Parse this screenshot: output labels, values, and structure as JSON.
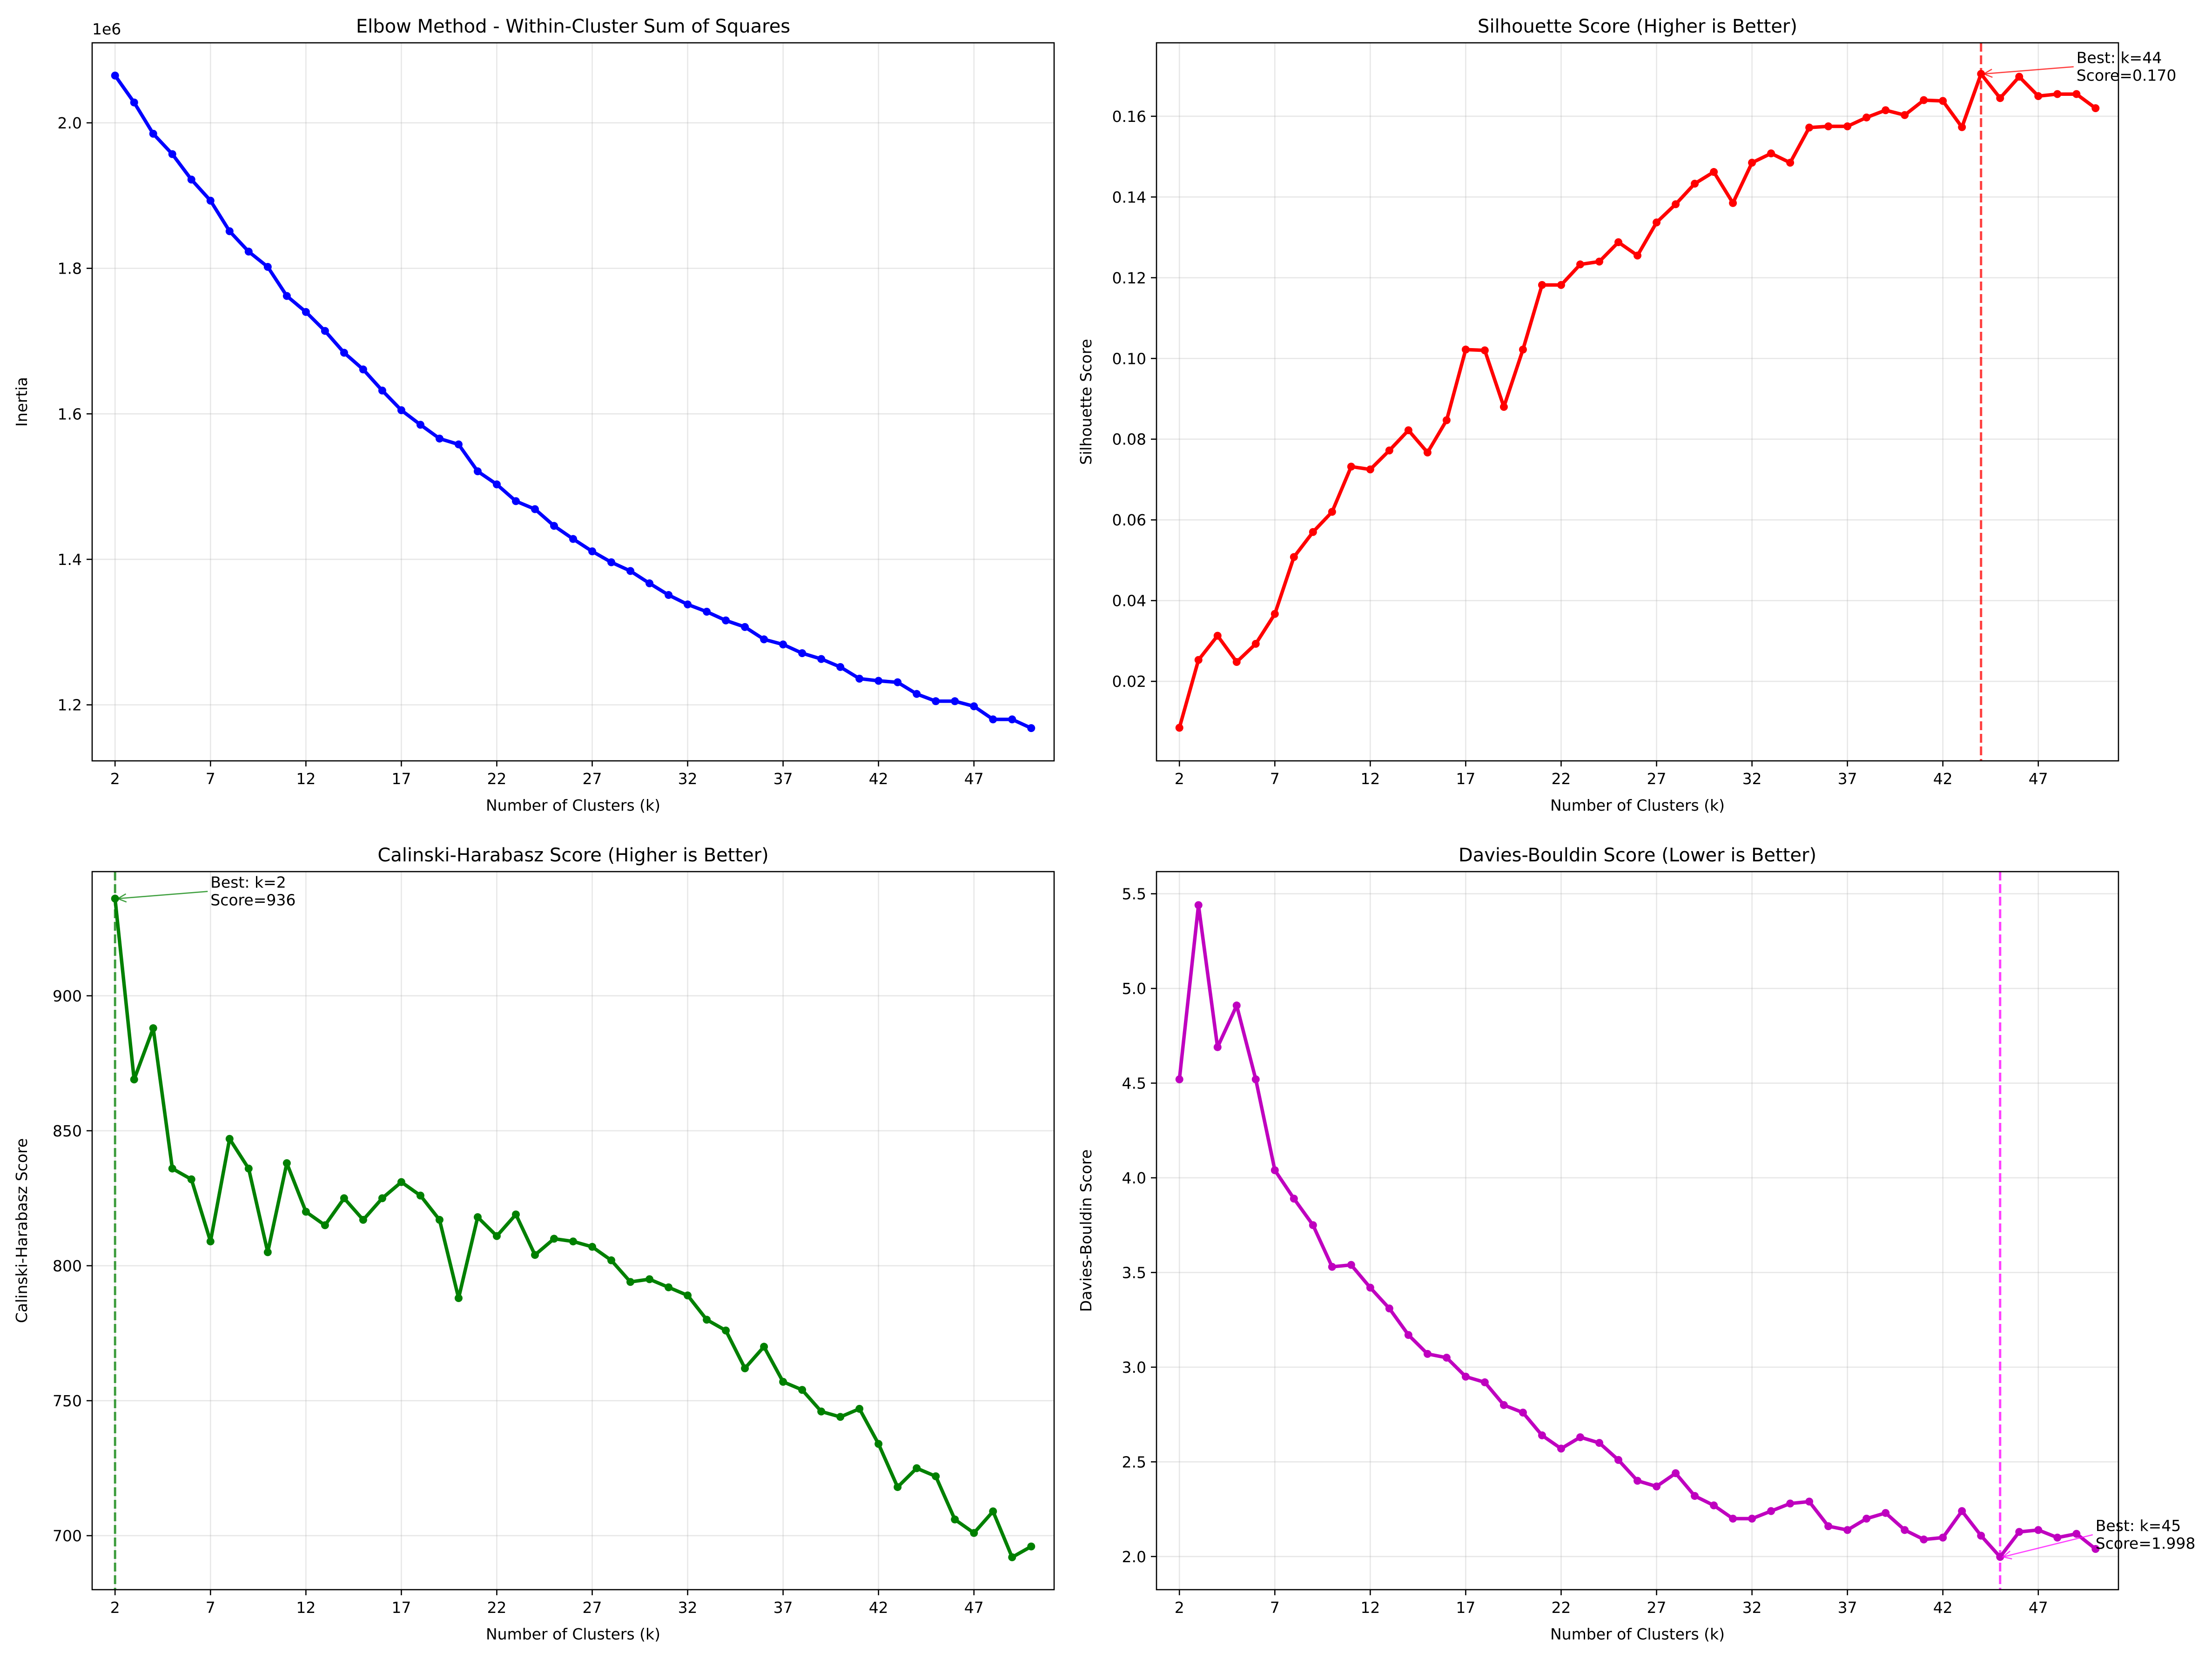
{
  "chart_data": [
    {
      "type": "line",
      "title": "Elbow Method - Within-Cluster Sum of Squares",
      "xlabel": "Number of Clusters (k)",
      "ylabel": "Inertia",
      "offset_label": "1e6",
      "color": "#0000ff",
      "x": [
        2,
        3,
        4,
        5,
        6,
        7,
        8,
        9,
        10,
        11,
        12,
        13,
        14,
        15,
        16,
        17,
        18,
        19,
        20,
        21,
        22,
        23,
        24,
        25,
        26,
        27,
        28,
        29,
        30,
        31,
        32,
        33,
        34,
        35,
        36,
        37,
        38,
        39,
        40,
        41,
        42,
        43,
        44,
        45,
        46,
        47,
        48,
        49,
        50
      ],
      "series": [
        {
          "values": [
            2.065,
            2.028,
            1.985,
            1.957,
            1.922,
            1.893,
            1.851,
            1.823,
            1.802,
            1.762,
            1.74,
            1.714,
            1.684,
            1.661,
            1.632,
            1.605,
            1.585,
            1.566,
            1.558,
            1.521,
            1.503,
            1.48,
            1.469,
            1.446,
            1.428,
            1.411,
            1.396,
            1.384,
            1.367,
            1.351,
            1.338,
            1.328,
            1.316,
            1.307,
            1.29,
            1.283,
            1.271,
            1.263,
            1.252,
            1.236,
            1.233,
            1.231,
            1.215,
            1.205,
            1.205,
            1.198,
            1.18,
            1.18,
            1.168
          ]
        }
      ],
      "xlim": [
        0.8,
        51.2
      ],
      "ylim": [
        1.123,
        2.11
      ],
      "xticks": [
        2,
        7,
        12,
        17,
        22,
        27,
        32,
        37,
        42,
        47
      ],
      "yticks": [
        1.2,
        1.4,
        1.6,
        1.8,
        2.0
      ],
      "ytick_labels": [
        "1.2",
        "1.4",
        "1.6",
        "1.8",
        "2.0"
      ],
      "grid": true
    },
    {
      "type": "line",
      "title": "Silhouette Score (Higher is Better)",
      "xlabel": "Number of Clusters (k)",
      "ylabel": "Silhouette Score",
      "color": "#ff0000",
      "x": [
        2,
        3,
        4,
        5,
        6,
        7,
        8,
        9,
        10,
        11,
        12,
        13,
        14,
        15,
        16,
        17,
        18,
        19,
        20,
        21,
        22,
        23,
        24,
        25,
        26,
        27,
        28,
        29,
        30,
        31,
        32,
        33,
        34,
        35,
        36,
        37,
        38,
        39,
        40,
        41,
        42,
        43,
        44,
        45,
        46,
        47,
        48,
        49,
        50
      ],
      "series": [
        {
          "values": [
            0.0085,
            0.0253,
            0.0313,
            0.0248,
            0.0293,
            0.0367,
            0.0508,
            0.057,
            0.062,
            0.0732,
            0.0725,
            0.0772,
            0.0822,
            0.0767,
            0.0847,
            0.1022,
            0.102,
            0.088,
            0.1022,
            0.1182,
            0.1182,
            0.1233,
            0.124,
            0.1288,
            0.1255,
            0.1337,
            0.1382,
            0.1433,
            0.1462,
            0.1385,
            0.1485,
            0.1508,
            0.1485,
            0.1572,
            0.1575,
            0.1575,
            0.1597,
            0.1615,
            0.1603,
            0.164,
            0.1638,
            0.1573,
            0.1705,
            0.1645,
            0.1698,
            0.165,
            0.1655,
            0.1655,
            0.162
          ]
        }
      ],
      "xlim": [
        0.8,
        51.2
      ],
      "ylim": [
        0.0003,
        0.1782
      ],
      "xticks": [
        2,
        7,
        12,
        17,
        22,
        27,
        32,
        37,
        42,
        47
      ],
      "yticks": [
        0.02,
        0.04,
        0.06,
        0.08,
        0.1,
        0.12,
        0.14,
        0.16
      ],
      "ytick_labels": [
        "0.02",
        "0.04",
        "0.06",
        "0.08",
        "0.10",
        "0.12",
        "0.14",
        "0.16"
      ],
      "grid": true,
      "best_k": 44,
      "best_value": 0.1705,
      "best_line_color": "#ff0000",
      "annotation_lines": [
        "Best: k=44",
        "Score=0.170"
      ],
      "annotation_text_xy": [
        49,
        0.1725
      ]
    },
    {
      "type": "line",
      "title": "Calinski-Harabasz Score (Higher is Better)",
      "xlabel": "Number of Clusters (k)",
      "ylabel": "Calinski-Harabasz Score",
      "color": "#008000",
      "x": [
        2,
        3,
        4,
        5,
        6,
        7,
        8,
        9,
        10,
        11,
        12,
        13,
        14,
        15,
        16,
        17,
        18,
        19,
        20,
        21,
        22,
        23,
        24,
        25,
        26,
        27,
        28,
        29,
        30,
        31,
        32,
        33,
        34,
        35,
        36,
        37,
        38,
        39,
        40,
        41,
        42,
        43,
        44,
        45,
        46,
        47,
        48,
        49,
        50
      ],
      "series": [
        {
          "values": [
            936,
            869,
            888,
            836,
            832,
            809,
            847,
            836,
            805,
            838,
            820,
            815,
            825,
            817,
            825,
            831,
            826,
            817,
            788,
            818,
            811,
            819,
            804,
            810,
            809,
            807,
            802,
            794,
            795,
            792,
            789,
            780,
            776,
            762,
            770,
            757,
            754,
            746,
            744,
            747,
            734,
            718,
            725,
            722,
            706,
            701,
            709,
            692,
            696
          ]
        }
      ],
      "xlim": [
        0.8,
        51.2
      ],
      "ylim": [
        680,
        946
      ],
      "xticks": [
        2,
        7,
        12,
        17,
        22,
        27,
        32,
        37,
        42,
        47
      ],
      "yticks": [
        700,
        750,
        800,
        850,
        900
      ],
      "ytick_labels": [
        "700",
        "750",
        "800",
        "850",
        "900"
      ],
      "grid": true,
      "best_k": 2,
      "best_value": 936,
      "best_line_color": "#008000",
      "annotation_lines": [
        "Best: k=2",
        "Score=936"
      ],
      "annotation_text_xy": [
        7,
        939
      ]
    },
    {
      "type": "line",
      "title": "Davies-Bouldin Score (Lower is Better)",
      "xlabel": "Number of Clusters (k)",
      "ylabel": "Davies-Bouldin Score",
      "color": "#bf00bf",
      "x": [
        2,
        3,
        4,
        5,
        6,
        7,
        8,
        9,
        10,
        11,
        12,
        13,
        14,
        15,
        16,
        17,
        18,
        19,
        20,
        21,
        22,
        23,
        24,
        25,
        26,
        27,
        28,
        29,
        30,
        31,
        32,
        33,
        34,
        35,
        36,
        37,
        38,
        39,
        40,
        41,
        42,
        43,
        44,
        45,
        46,
        47,
        48,
        49,
        50
      ],
      "series": [
        {
          "values": [
            4.52,
            5.44,
            4.69,
            4.91,
            4.52,
            4.04,
            3.89,
            3.75,
            3.53,
            3.54,
            3.42,
            3.31,
            3.17,
            3.07,
            3.05,
            2.95,
            2.92,
            2.8,
            2.76,
            2.64,
            2.57,
            2.63,
            2.6,
            2.51,
            2.4,
            2.37,
            2.44,
            2.32,
            2.27,
            2.2,
            2.2,
            2.24,
            2.28,
            2.29,
            2.16,
            2.14,
            2.2,
            2.23,
            2.14,
            2.09,
            2.1,
            2.24,
            2.11,
            1.998,
            2.13,
            2.14,
            2.1,
            2.12,
            2.04
          ]
        }
      ],
      "xlim": [
        0.8,
        51.2
      ],
      "ylim": [
        1.825,
        5.617
      ],
      "xticks": [
        2,
        7,
        12,
        17,
        22,
        27,
        32,
        37,
        42,
        47
      ],
      "yticks": [
        2.0,
        2.5,
        3.0,
        3.5,
        4.0,
        4.5,
        5.0,
        5.5
      ],
      "ytick_labels": [
        "2.0",
        "2.5",
        "3.0",
        "3.5",
        "4.0",
        "4.5",
        "5.0",
        "5.5"
      ],
      "grid": true,
      "best_k": 45,
      "best_value": 1.998,
      "best_line_color": "#ff00ff",
      "annotation_lines": [
        "Best: k=45",
        "Score=1.998"
      ],
      "annotation_text_xy": [
        50,
        2.12
      ]
    }
  ]
}
